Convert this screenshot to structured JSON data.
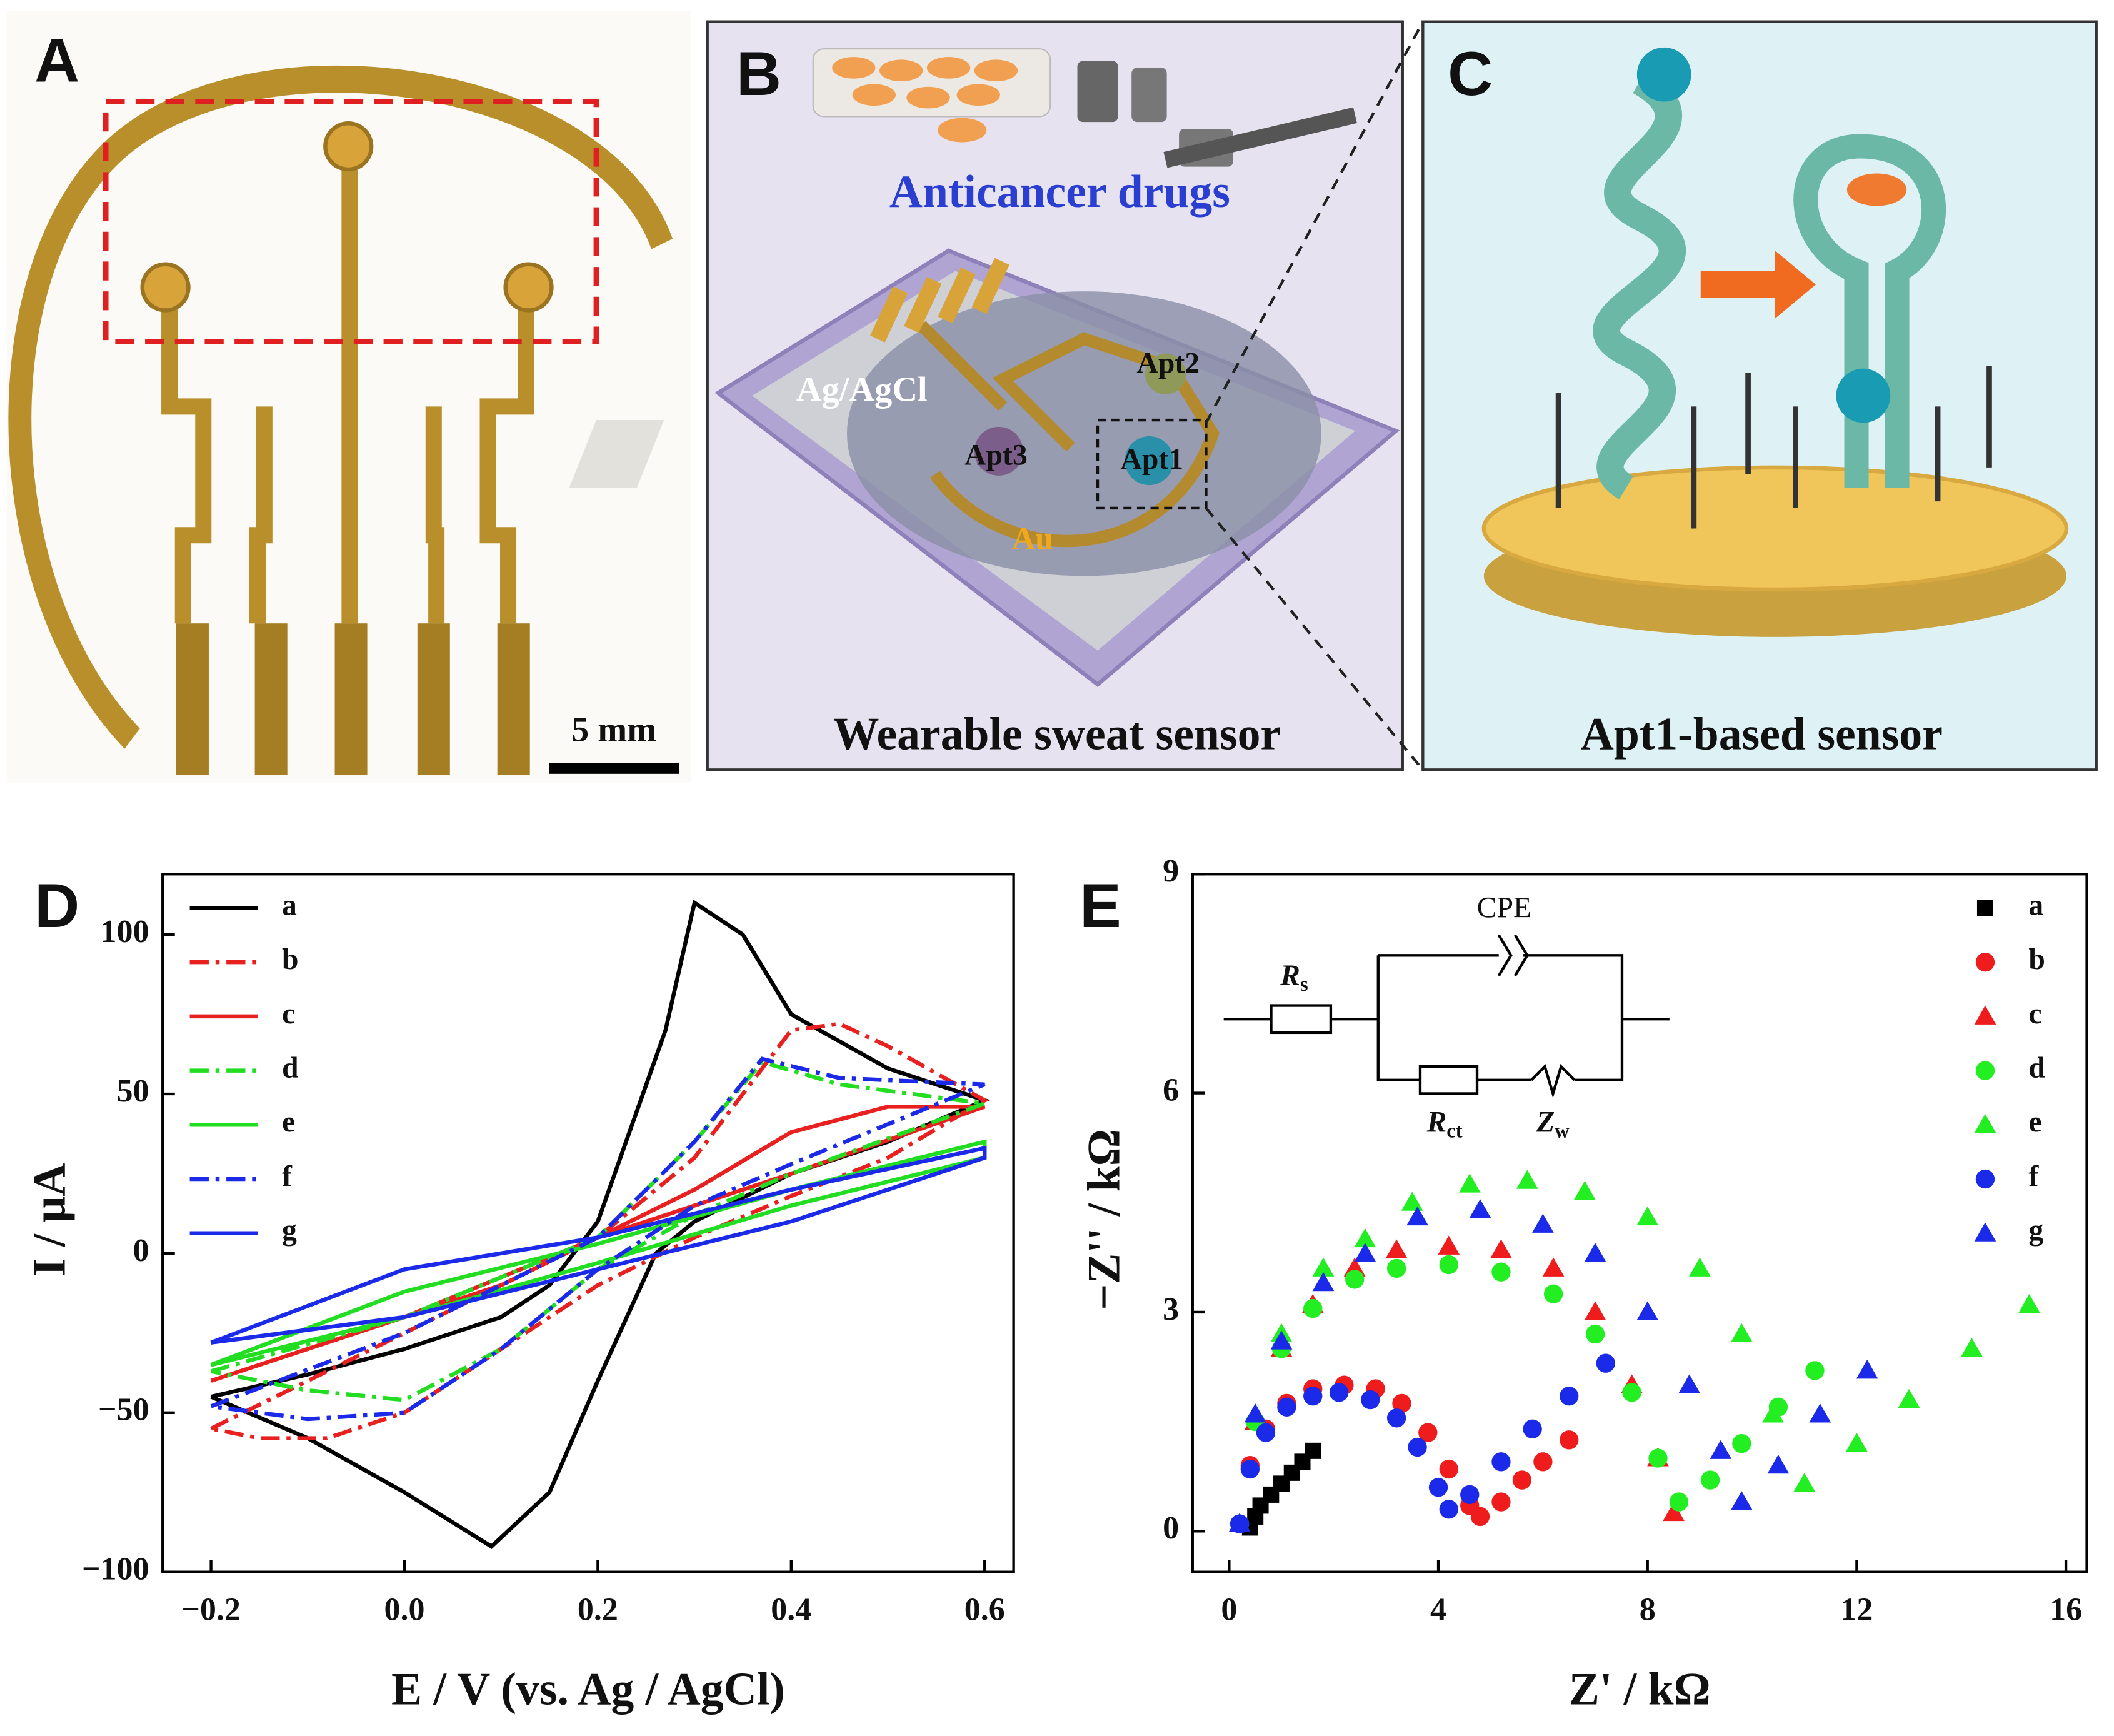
{
  "panels": {
    "A": {
      "label": "A",
      "scale_bar": "5 mm"
    },
    "B": {
      "label": "B",
      "drugs": "Anticancer drugs",
      "reference": "Ag/AgCl",
      "apt2": "Apt2",
      "apt3": "Apt3",
      "apt1": "Apt1",
      "gold": "Au",
      "caption": "Wearable sweat sensor"
    },
    "C": {
      "label": "C",
      "caption": "Apt1-based sensor"
    }
  },
  "chart_data": [
    {
      "type": "line",
      "panel_label": "D",
      "xlabel": "E / V (vs. Ag / AgCl)",
      "ylabel": "I / μA",
      "xlim": [
        -0.25,
        0.63
      ],
      "ylim": [
        -100,
        119
      ],
      "xticks": [
        {
          "value": -0.2,
          "label": "−0.2"
        },
        {
          "value": 0,
          "label": "0.0"
        },
        {
          "value": 0.2,
          "label": "0.2"
        },
        {
          "value": 0.4,
          "label": "0.4"
        },
        {
          "value": 0.6,
          "label": "0.6"
        }
      ],
      "yticks": [
        {
          "value": -100,
          "label": "−100"
        },
        {
          "value": -50,
          "label": "−50"
        },
        0,
        50,
        100
      ],
      "legend": "upper left",
      "series": [
        {
          "name": "a",
          "color": "#000000",
          "dash": "solid",
          "x": [
            -0.2,
            -0.1,
            0,
            0.1,
            0.15,
            0.2,
            0.27,
            0.3,
            0.35,
            0.4,
            0.5,
            0.6,
            0.5,
            0.4,
            0.3,
            0.26,
            0.2,
            0.15,
            0.09,
            0,
            -0.1,
            -0.2
          ],
          "values": [
            -45,
            -38,
            -30,
            -20,
            -10,
            10,
            70,
            110,
            100,
            75,
            58,
            48,
            35,
            25,
            10,
            0,
            -40,
            -75,
            -92,
            -75,
            -58,
            -45
          ]
        },
        {
          "name": "b",
          "color": "#e82020",
          "dash": "dashdot",
          "x": [
            -0.2,
            -0.1,
            0,
            0.1,
            0.2,
            0.3,
            0.4,
            0.45,
            0.5,
            0.6,
            0.5,
            0.4,
            0.3,
            0.2,
            0.1,
            0,
            -0.08,
            -0.15,
            -0.2
          ],
          "values": [
            -55,
            -40,
            -25,
            -10,
            5,
            30,
            70,
            72,
            65,
            48,
            30,
            18,
            5,
            -10,
            -30,
            -50,
            -58,
            -58,
            -55
          ]
        },
        {
          "name": "c",
          "color": "#e82020",
          "dash": "solid",
          "x": [
            -0.2,
            0,
            0.2,
            0.3,
            0.4,
            0.5,
            0.6,
            0.4,
            0.2,
            0.1,
            0,
            -0.1,
            -0.2
          ],
          "values": [
            -40,
            -20,
            5,
            20,
            38,
            46,
            46,
            25,
            5,
            -10,
            -20,
            -30,
            -40
          ]
        },
        {
          "name": "d",
          "color": "#22dd22",
          "dash": "dashdot",
          "x": [
            -0.2,
            0,
            0.2,
            0.3,
            0.37,
            0.45,
            0.6,
            0.4,
            0.3,
            0.2,
            0.1,
            0,
            -0.1,
            -0.2
          ],
          "values": [
            -37,
            -20,
            5,
            35,
            60,
            53,
            47,
            25,
            12,
            -5,
            -30,
            -46,
            -43,
            -37
          ]
        },
        {
          "name": "e",
          "color": "#22dd22",
          "dash": "solid",
          "x": [
            -0.2,
            0,
            0.2,
            0.4,
            0.6,
            0.6,
            0.4,
            0.2,
            0,
            -0.2
          ],
          "values": [
            -35,
            -12,
            3,
            20,
            35,
            30,
            15,
            -3,
            -20,
            -35
          ]
        },
        {
          "name": "f",
          "color": "#1a2ae8",
          "dash": "dashdot",
          "x": [
            -0.2,
            0,
            0.2,
            0.3,
            0.37,
            0.45,
            0.6,
            0.4,
            0.3,
            0.2,
            0.1,
            0,
            -0.1,
            -0.2
          ],
          "values": [
            -48,
            -25,
            5,
            35,
            61,
            55,
            53,
            28,
            15,
            -5,
            -30,
            -50,
            -52,
            -48
          ]
        },
        {
          "name": "g",
          "color": "#1a2ae8",
          "dash": "solid",
          "x": [
            -0.2,
            0,
            0.2,
            0.4,
            0.6,
            0.6,
            0.4,
            0.2,
            0,
            -0.2
          ],
          "values": [
            -28,
            -5,
            5,
            20,
            33,
            30,
            10,
            -5,
            -20,
            -28
          ]
        }
      ]
    },
    {
      "type": "scatter",
      "panel_label": "E",
      "xlabel": "Z' / kΩ",
      "ylabel": "−Z'' / kΩ",
      "xlim": [
        -0.7,
        16.4
      ],
      "ylim": [
        -0.56,
        9
      ],
      "xticks": [
        0,
        4,
        8,
        12,
        16
      ],
      "yticks": [
        0,
        3,
        6,
        9
      ],
      "legend": "upper right",
      "circuit": {
        "cpe": "CPE",
        "rs": {
          "main": "R",
          "sub": "s"
        },
        "rct": {
          "main": "R",
          "sub": "ct"
        },
        "zw": {
          "main": "Z",
          "sub": "w"
        }
      },
      "series": [
        {
          "name": "a",
          "color": "#000000",
          "marker": "square",
          "x": [
            0.4,
            0.5,
            0.6,
            0.8,
            1.0,
            1.2,
            1.4,
            1.6
          ],
          "values": [
            0.05,
            0.2,
            0.35,
            0.5,
            0.65,
            0.8,
            0.95,
            1.1
          ]
        },
        {
          "name": "b",
          "color": "#ee1c1c",
          "marker": "circle",
          "x": [
            0.2,
            0.4,
            0.7,
            1.1,
            1.6,
            2.2,
            2.8,
            3.3,
            3.8,
            4.2,
            4.6,
            4.8,
            5.2,
            5.6,
            6.0,
            6.5
          ],
          "values": [
            0.1,
            0.9,
            1.4,
            1.75,
            1.95,
            2.0,
            1.95,
            1.75,
            1.35,
            0.85,
            0.35,
            0.2,
            0.4,
            0.7,
            0.95,
            1.25
          ]
        },
        {
          "name": "c",
          "color": "#ee1c1c",
          "marker": "triangle",
          "x": [
            0.2,
            0.5,
            1.0,
            1.6,
            2.4,
            3.2,
            4.2,
            5.2,
            6.2,
            7.0,
            7.7,
            8.2,
            8.5
          ],
          "values": [
            0.1,
            1.5,
            2.5,
            3.1,
            3.6,
            3.85,
            3.9,
            3.85,
            3.6,
            3.0,
            2.0,
            1.0,
            0.25
          ]
        },
        {
          "name": "d",
          "color": "#22ee22",
          "marker": "circle",
          "x": [
            0.2,
            0.5,
            1.0,
            1.6,
            2.4,
            3.2,
            4.2,
            5.2,
            6.2,
            7.0,
            7.7,
            8.2,
            8.6,
            9.2,
            9.8,
            10.5,
            11.2
          ],
          "values": [
            0.1,
            1.5,
            2.5,
            3.05,
            3.45,
            3.6,
            3.65,
            3.55,
            3.25,
            2.7,
            1.9,
            1.0,
            0.4,
            0.7,
            1.2,
            1.7,
            2.2
          ]
        },
        {
          "name": "e",
          "color": "#22ee22",
          "marker": "triangle",
          "x": [
            0.2,
            0.5,
            1.0,
            1.8,
            2.6,
            3.5,
            4.6,
            5.7,
            6.8,
            8.0,
            9.0,
            9.8,
            10.4,
            11.0,
            12.0,
            13.0,
            14.2,
            15.3
          ],
          "values": [
            0.1,
            1.6,
            2.7,
            3.6,
            4.0,
            4.5,
            4.75,
            4.8,
            4.65,
            4.3,
            3.6,
            2.7,
            1.6,
            0.65,
            1.2,
            1.8,
            2.5,
            3.1
          ]
        },
        {
          "name": "f",
          "color": "#1a2ae8",
          "marker": "circle",
          "x": [
            0.2,
            0.4,
            0.7,
            1.1,
            1.6,
            2.1,
            2.7,
            3.2,
            3.6,
            4.0,
            4.2,
            4.6,
            5.2,
            5.8,
            6.5,
            7.2
          ],
          "values": [
            0.1,
            0.85,
            1.35,
            1.7,
            1.85,
            1.9,
            1.8,
            1.55,
            1.15,
            0.6,
            0.3,
            0.5,
            0.95,
            1.4,
            1.85,
            2.3
          ]
        },
        {
          "name": "g",
          "color": "#1a2ae8",
          "marker": "triangle",
          "x": [
            0.2,
            0.5,
            1.0,
            1.8,
            2.6,
            3.6,
            4.8,
            6.0,
            7.0,
            8.0,
            8.8,
            9.4,
            9.8,
            10.5,
            11.3,
            12.2
          ],
          "values": [
            0.1,
            1.6,
            2.6,
            3.4,
            3.8,
            4.3,
            4.4,
            4.2,
            3.8,
            3.0,
            2.0,
            1.1,
            0.4,
            0.9,
            1.6,
            2.2
          ]
        }
      ]
    }
  ]
}
